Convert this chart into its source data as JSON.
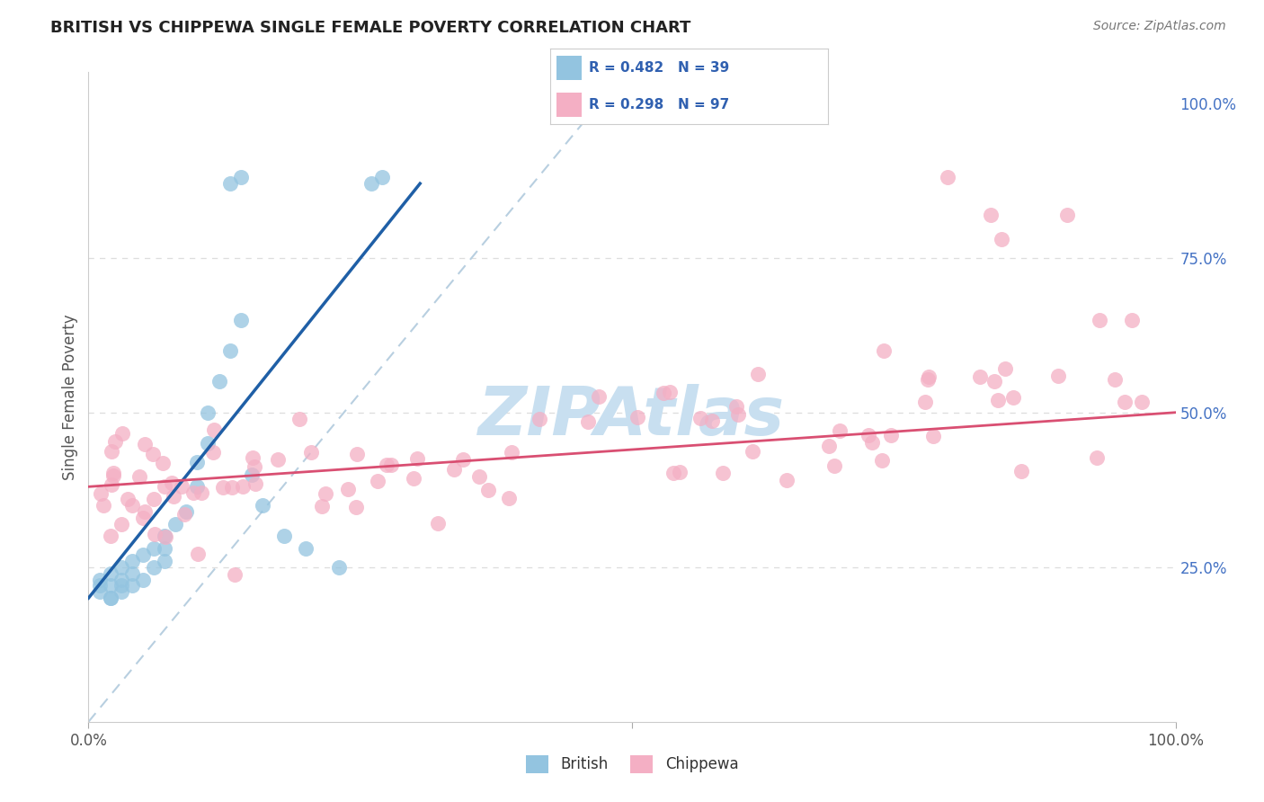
{
  "title": "BRITISH VS CHIPPEWA SINGLE FEMALE POVERTY CORRELATION CHART",
  "source": "Source: ZipAtlas.com",
  "ylabel": "Single Female Poverty",
  "british_R": 0.482,
  "british_N": 39,
  "chippewa_R": 0.298,
  "chippewa_N": 97,
  "british_color": "#93c4e0",
  "chippewa_color": "#f4afc4",
  "british_line_color": "#1f5fa6",
  "chippewa_line_color": "#d94f72",
  "diagonal_color": "#b8cfe0",
  "watermark": "ZIPAtlas",
  "watermark_color": "#c8dff0",
  "background_color": "#ffffff",
  "grid_color": "#dddddd",
  "right_tick_color": "#4472c4",
  "title_color": "#222222",
  "source_color": "#777777",
  "label_color": "#555555",
  "legend_text_color": "#3060b0",
  "bottom_legend_color": "#333333"
}
